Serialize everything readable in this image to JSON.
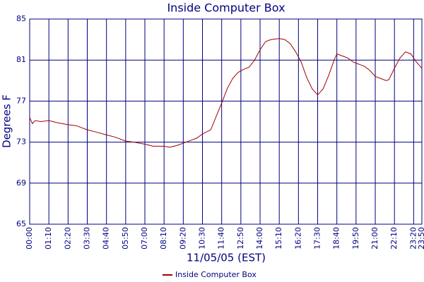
{
  "chart_data": {
    "type": "line",
    "title": "Inside Computer Box",
    "xlabel": "11/05/05 (EST)",
    "ylabel": "Degrees F",
    "x": [
      0,
      10,
      20,
      40,
      70,
      100,
      140,
      170,
      210,
      240,
      280,
      310,
      350,
      380,
      420,
      450,
      490,
      510,
      540,
      560,
      590,
      610,
      630,
      660,
      680,
      700,
      720,
      740,
      760,
      780,
      800,
      820,
      840,
      860,
      880,
      910,
      930,
      950,
      970,
      990,
      1010,
      1030,
      1050,
      1070,
      1090,
      1110,
      1120,
      1140,
      1160,
      1180,
      1200,
      1220,
      1240,
      1260,
      1280,
      1300,
      1310,
      1330,
      1350,
      1370,
      1390,
      1410,
      1430
    ],
    "series": [
      {
        "name": "Inside Computer Box",
        "color": "#a00000",
        "values": [
          75.4,
          74.8,
          75.1,
          75.0,
          75.1,
          74.9,
          74.7,
          74.6,
          74.2,
          74.0,
          73.7,
          73.5,
          73.1,
          73.0,
          72.8,
          72.6,
          72.6,
          72.5,
          72.7,
          72.9,
          73.2,
          73.4,
          73.8,
          74.2,
          75.5,
          76.8,
          78.2,
          79.2,
          79.8,
          80.1,
          80.3,
          81.0,
          82.0,
          82.8,
          83.0,
          83.1,
          83.0,
          82.6,
          81.8,
          80.8,
          79.3,
          78.2,
          77.6,
          78.2,
          79.5,
          81.0,
          81.6,
          81.4,
          81.2,
          80.8,
          80.6,
          80.4,
          80.0,
          79.4,
          79.2,
          79.0,
          79.1,
          80.2,
          81.2,
          81.8,
          81.6,
          80.8,
          80.2
        ]
      }
    ],
    "xlim": [
      0,
      1430
    ],
    "xticks": [
      {
        "value": 0,
        "label": "00:00"
      },
      {
        "value": 70,
        "label": "01:10"
      },
      {
        "value": 140,
        "label": "02:20"
      },
      {
        "value": 210,
        "label": "03:30"
      },
      {
        "value": 280,
        "label": "04:40"
      },
      {
        "value": 350,
        "label": "05:50"
      },
      {
        "value": 420,
        "label": "07:00"
      },
      {
        "value": 490,
        "label": "08:10"
      },
      {
        "value": 560,
        "label": "09:20"
      },
      {
        "value": 630,
        "label": "10:30"
      },
      {
        "value": 700,
        "label": "11:40"
      },
      {
        "value": 770,
        "label": "12:50"
      },
      {
        "value": 840,
        "label": "14:00"
      },
      {
        "value": 910,
        "label": "15:10"
      },
      {
        "value": 980,
        "label": "16:20"
      },
      {
        "value": 1050,
        "label": "17:30"
      },
      {
        "value": 1120,
        "label": "18:40"
      },
      {
        "value": 1190,
        "label": "19:50"
      },
      {
        "value": 1260,
        "label": "21:00"
      },
      {
        "value": 1330,
        "label": "22:10"
      },
      {
        "value": 1400,
        "label": "23:20"
      },
      {
        "value": 1430,
        "label": "23:50"
      }
    ],
    "ylim": [
      65,
      85
    ],
    "yticks": [
      65,
      69,
      73,
      77,
      81,
      85
    ],
    "grid": true,
    "legend": "bottom"
  }
}
